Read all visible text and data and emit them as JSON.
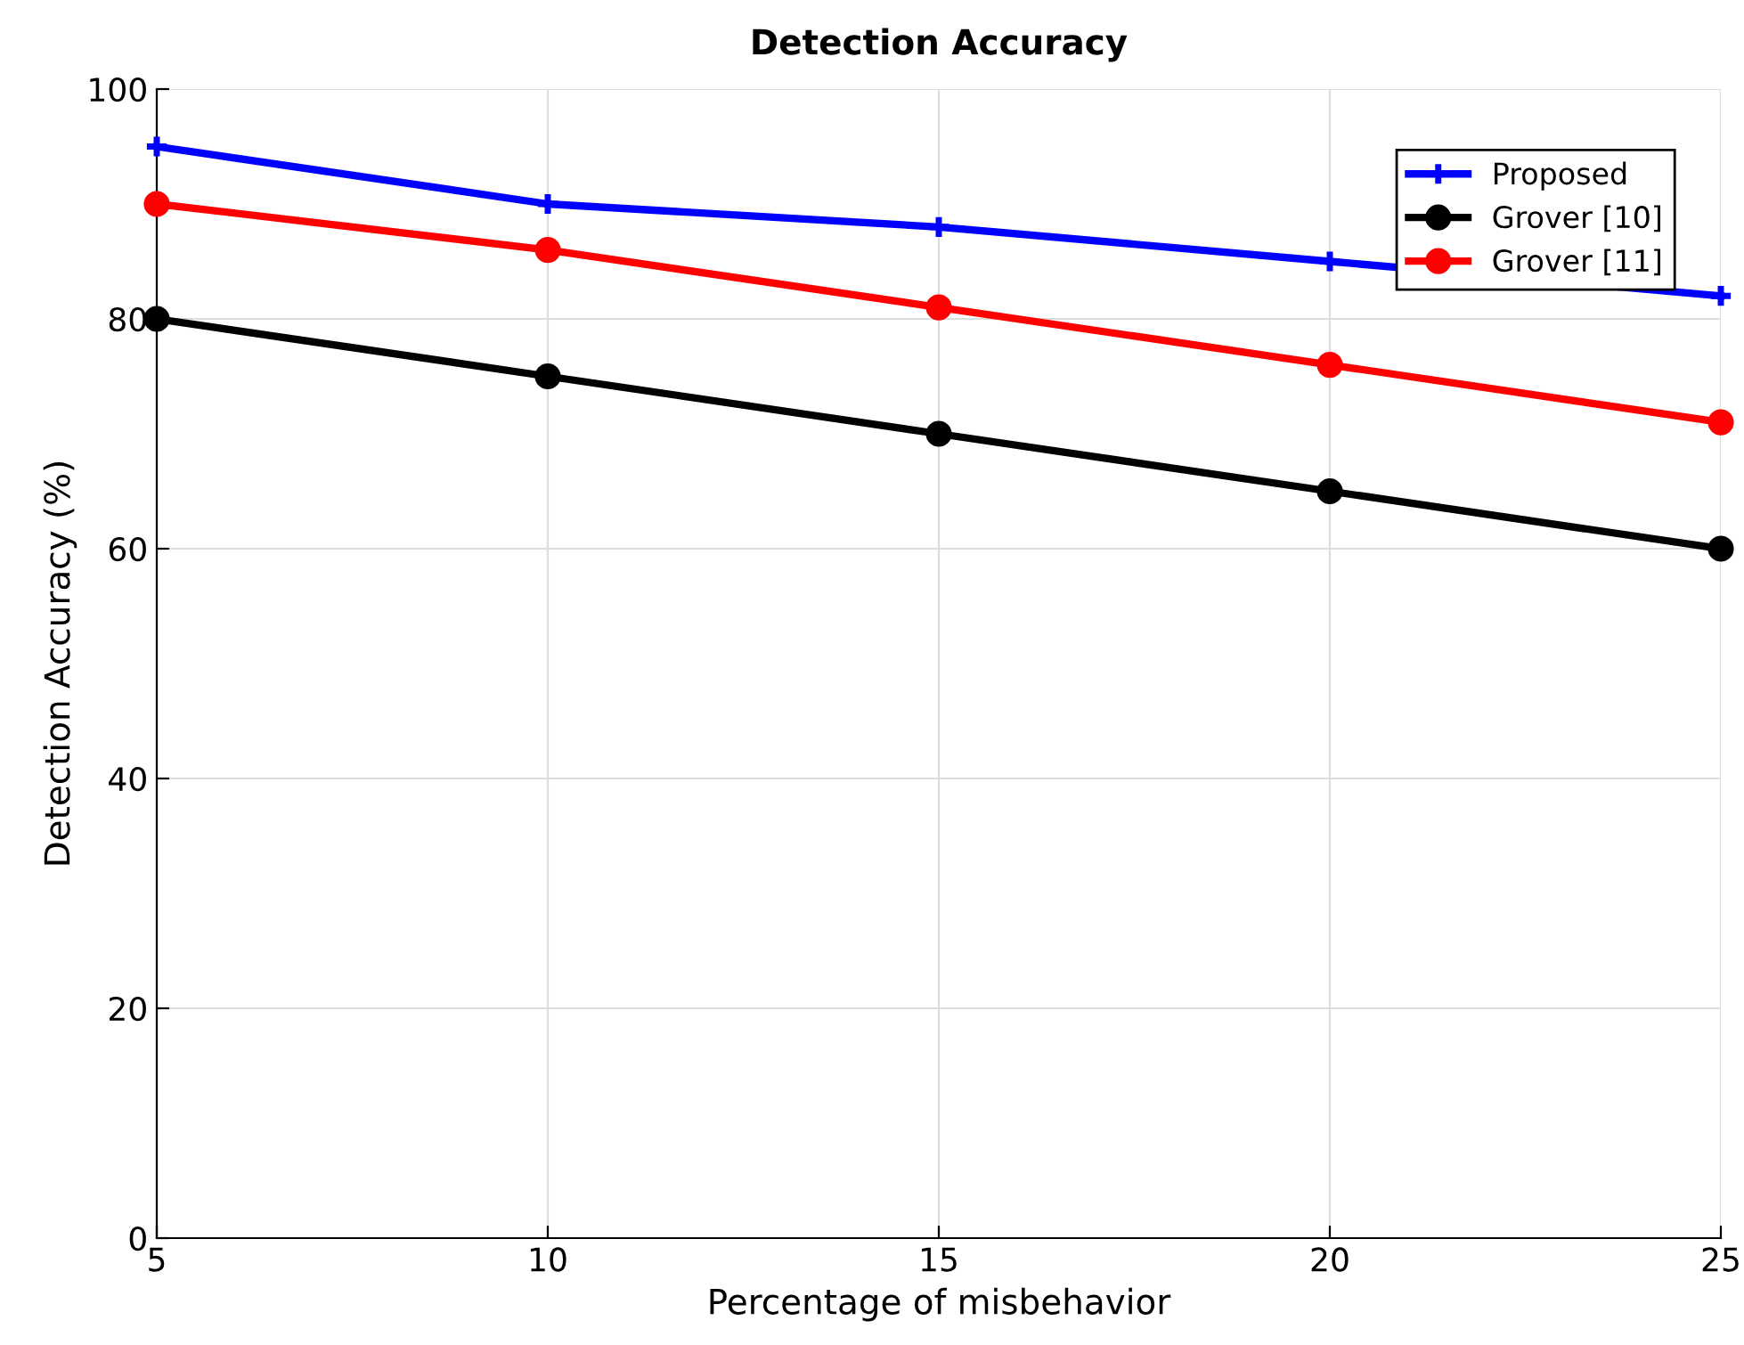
{
  "chart_data": {
    "type": "line",
    "title": "Detection Accuracy",
    "xlabel": "Percentage of misbehavior",
    "ylabel": "Detection Accuracy (%)",
    "x": [
      5,
      10,
      15,
      20,
      25
    ],
    "series": [
      {
        "name": "Proposed",
        "color": "#0000ff",
        "marker": "cross",
        "values": [
          95,
          90,
          88,
          85,
          82
        ]
      },
      {
        "name": "Grover [10]",
        "color": "#000000",
        "marker": "circle",
        "values": [
          80,
          75,
          70,
          65,
          60
        ]
      },
      {
        "name": "Grover [11]",
        "color": "#ff0000",
        "marker": "circle",
        "values": [
          90,
          86,
          81,
          76,
          71
        ]
      }
    ],
    "xlim": [
      5,
      25
    ],
    "xticks": [
      5,
      10,
      15,
      20,
      25
    ],
    "ylim": [
      0,
      100
    ],
    "yticks": [
      0,
      20,
      40,
      60,
      80,
      100
    ],
    "grid": true,
    "legend": "top right",
    "line_style": "solid"
  }
}
